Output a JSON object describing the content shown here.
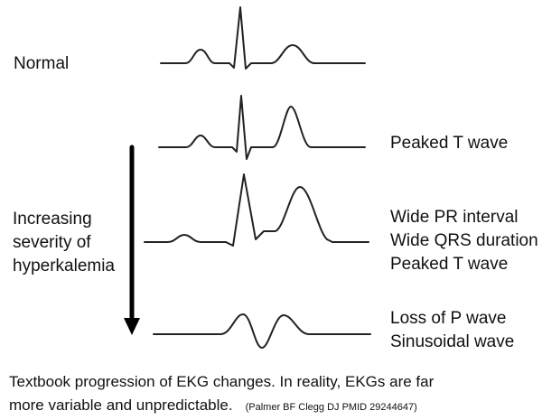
{
  "rows": [
    {
      "name": "normal",
      "left_text": "Normal",
      "right_lines": []
    },
    {
      "name": "peaked-t",
      "left_text": "",
      "right_lines": [
        "Peaked T wave"
      ]
    },
    {
      "name": "wide",
      "left_text": "",
      "right_lines": [
        "Wide PR interval",
        "Wide QRS duration",
        "Peaked T wave"
      ]
    },
    {
      "name": "sinusoidal",
      "left_text": "",
      "right_lines": [
        "Loss of P wave",
        "Sinusoidal wave"
      ]
    }
  ],
  "arrow_label": [
    "Increasing",
    "severity of",
    "hyperkalemia"
  ],
  "caption": {
    "line1": "Textbook progression of EKG changes.  In reality, EKGs are far",
    "line2": "more variable and unpredictable.",
    "citation": "(Palmer BF Clegg DJ PMID 29244647)"
  }
}
